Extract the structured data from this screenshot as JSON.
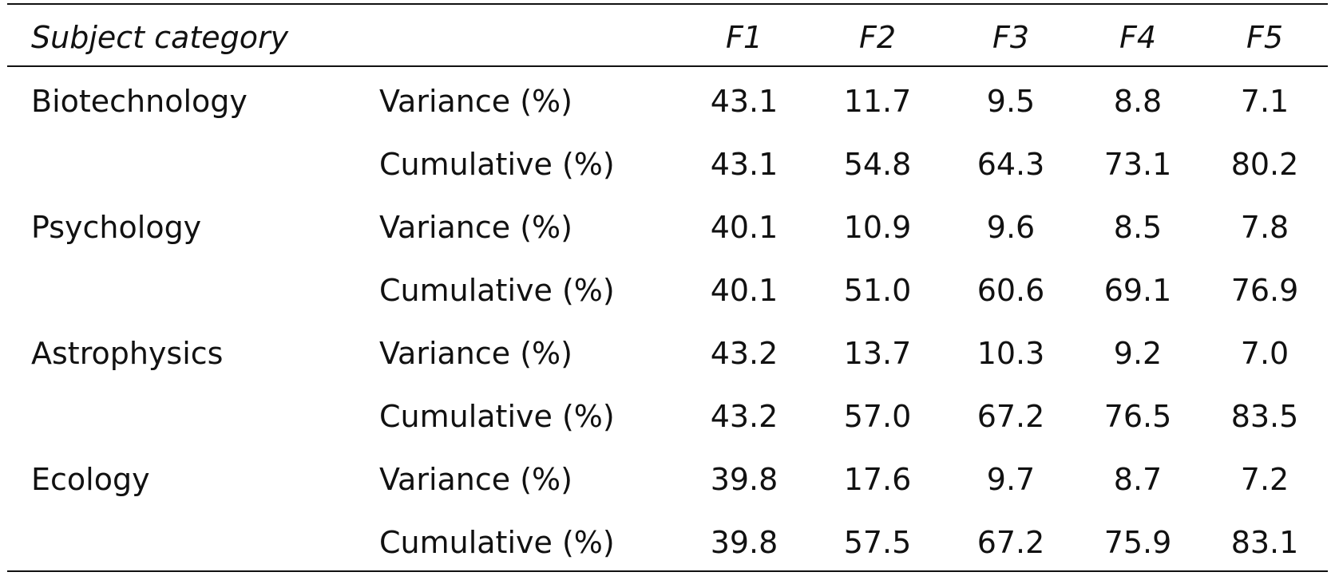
{
  "table": {
    "headers": [
      "Subject category",
      "",
      "F1",
      "F2",
      "F3",
      "F4",
      "F5"
    ],
    "rows": [
      {
        "category": "Biotechnology",
        "measure": "Variance (%)",
        "values": [
          "43.1",
          "11.7",
          "9.5",
          "8.8",
          "7.1"
        ]
      },
      {
        "category": "",
        "measure": "Cumulative (%)",
        "values": [
          "43.1",
          "54.8",
          "64.3",
          "73.1",
          "80.2"
        ]
      },
      {
        "category": "Psychology",
        "measure": "Variance (%)",
        "values": [
          "40.1",
          "10.9",
          "9.6",
          "8.5",
          "7.8"
        ]
      },
      {
        "category": "",
        "measure": "Cumulative (%)",
        "values": [
          "40.1",
          "51.0",
          "60.6",
          "69.1",
          "76.9"
        ]
      },
      {
        "category": "Astrophysics",
        "measure": "Variance (%)",
        "values": [
          "43.2",
          "13.7",
          "10.3",
          "9.2",
          "7.0"
        ]
      },
      {
        "category": "",
        "measure": "Cumulative (%)",
        "values": [
          "43.2",
          "57.0",
          "67.2",
          "76.5",
          "83.5"
        ]
      },
      {
        "category": "Ecology",
        "measure": "Variance (%)",
        "values": [
          "39.8",
          "17.6",
          "9.7",
          "8.7",
          "7.2"
        ]
      },
      {
        "category": "",
        "measure": "Cumulative (%)",
        "values": [
          "39.8",
          "57.5",
          "67.2",
          "75.9",
          "83.1"
        ]
      }
    ]
  }
}
